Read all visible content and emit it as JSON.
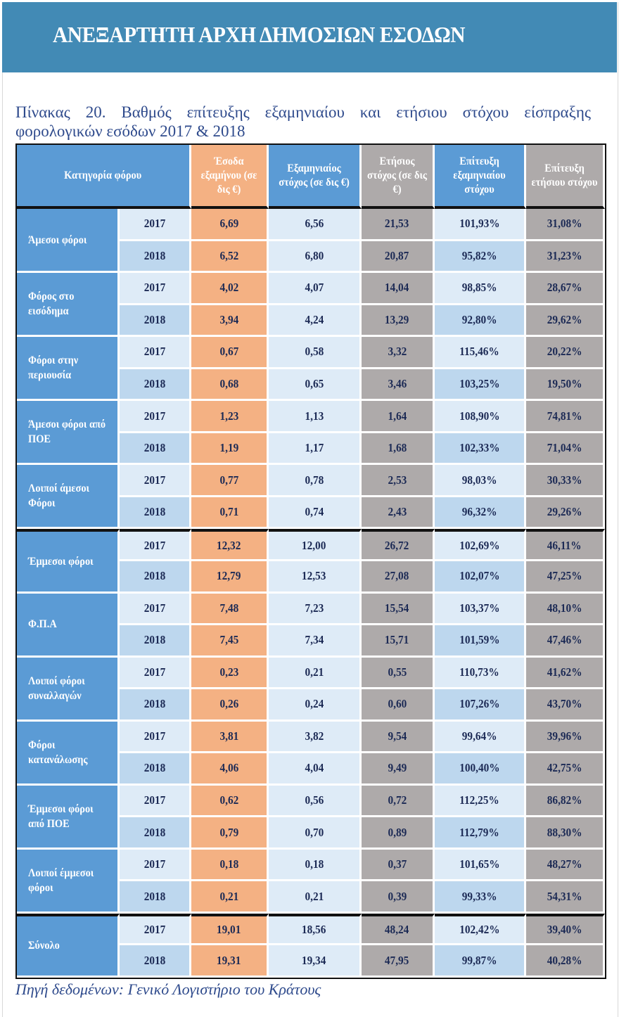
{
  "banner": {
    "title": "ΑΝΕΞΑΡΤΗΤΗ ΑΡΧΗ ΔΗΜΟΣΙΩΝ ΕΣΟΔΩΝ"
  },
  "caption": "Πίνακας 20. Βαθμός επίτευξης εξαμηνιαίου και ετήσιου στόχου είσπραξης φορολογικών εσόδων 2017 & 2018",
  "colors": {
    "banner": "#428ab5",
    "blue": "#5b9bd5",
    "orange": "#f4b183",
    "gray": "#aeaaaa",
    "light": "#deebf7",
    "mid": "#bdd7ee"
  },
  "table": {
    "headers": [
      "Κατηγορία φόρου",
      "Έσοδα εξαμήνου (σε δις €)",
      "Εξαμηνιαίος στόχος (σε δις €)",
      "Ετήσιος στόχος (σε δις €)",
      "Επίτευξη εξαμηνιαίου στόχου",
      "Επίτευξη ετήσιου στόχου"
    ],
    "groups": [
      {
        "name": "Άμεσοι φόροι",
        "rows": [
          [
            "2017",
            "6,69",
            "6,56",
            "21,53",
            "101,93%",
            "31,08%"
          ],
          [
            "2018",
            "6,52",
            "6,80",
            "20,87",
            "95,82%",
            "31,23%"
          ]
        ]
      },
      {
        "name": "Φόρος στο εισόδημα",
        "rows": [
          [
            "2017",
            "4,02",
            "4,07",
            "14,04",
            "98,85%",
            "28,67%"
          ],
          [
            "2018",
            "3,94",
            "4,24",
            "13,29",
            "92,80%",
            "29,62%"
          ]
        ]
      },
      {
        "name": "Φόροι στην περιουσία",
        "rows": [
          [
            "2017",
            "0,67",
            "0,58",
            "3,32",
            "115,46%",
            "20,22%"
          ],
          [
            "2018",
            "0,68",
            "0,65",
            "3,46",
            "103,25%",
            "19,50%"
          ]
        ]
      },
      {
        "name": "Άμεσοι φόροι από ΠΟΕ",
        "rows": [
          [
            "2017",
            "1,23",
            "1,13",
            "1,64",
            "108,90%",
            "74,81%"
          ],
          [
            "2018",
            "1,19",
            "1,17",
            "1,68",
            "102,33%",
            "71,04%"
          ]
        ]
      },
      {
        "name": "Λοιποί άμεσοι Φόροι",
        "rows": [
          [
            "2017",
            "0,77",
            "0,78",
            "2,53",
            "98,03%",
            "30,33%"
          ],
          [
            "2018",
            "0,71",
            "0,74",
            "2,43",
            "96,32%",
            "29,26%"
          ]
        ]
      },
      {
        "name": "Έμμεσοι φόροι",
        "rows": [
          [
            "2017",
            "12,32",
            "12,00",
            "26,72",
            "102,69%",
            "46,11%"
          ],
          [
            "2018",
            "12,79",
            "12,53",
            "27,08",
            "102,07%",
            "47,25%"
          ]
        ]
      },
      {
        "name": "Φ.Π.Α",
        "rows": [
          [
            "2017",
            "7,48",
            "7,23",
            "15,54",
            "103,37%",
            "48,10%"
          ],
          [
            "2018",
            "7,45",
            "7,34",
            "15,71",
            "101,59%",
            "47,46%"
          ]
        ]
      },
      {
        "name": "Λοιποί φόροι συναλλαγών",
        "rows": [
          [
            "2017",
            "0,23",
            "0,21",
            "0,55",
            "110,73%",
            "41,62%"
          ],
          [
            "2018",
            "0,26",
            "0,24",
            "0,60",
            "107,26%",
            "43,70%"
          ]
        ]
      },
      {
        "name": "Φόροι κατανάλωσης",
        "rows": [
          [
            "2017",
            "3,81",
            "3,82",
            "9,54",
            "99,64%",
            "39,96%"
          ],
          [
            "2018",
            "4,06",
            "4,04",
            "9,49",
            "100,40%",
            "42,75%"
          ]
        ]
      },
      {
        "name": "Έμμεσοι φόροι από ΠΟΕ",
        "rows": [
          [
            "2017",
            "0,62",
            "0,56",
            "0,72",
            "112,25%",
            "86,82%"
          ],
          [
            "2018",
            "0,79",
            "0,70",
            "0,89",
            "112,79%",
            "88,30%"
          ]
        ]
      },
      {
        "name": "Λοιποί έμμεσοι φόροι",
        "rows": [
          [
            "2017",
            "0,18",
            "0,18",
            "0,37",
            "101,65%",
            "48,27%"
          ],
          [
            "2018",
            "0,21",
            "0,21",
            "0,39",
            "99,33%",
            "54,31%"
          ]
        ]
      },
      {
        "name": "Σύνολο",
        "rows": [
          [
            "2017",
            "19,01",
            "18,56",
            "48,24",
            "102,42%",
            "39,40%"
          ],
          [
            "2018",
            "19,31",
            "19,34",
            "47,95",
            "99,87%",
            "40,28%"
          ]
        ]
      }
    ]
  },
  "source": "Πηγή δεδομένων: Γενικό Λογιστήριο του Κράτους"
}
